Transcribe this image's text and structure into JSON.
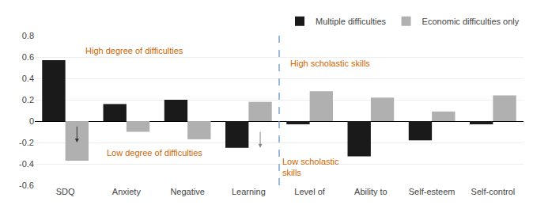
{
  "chart_data": {
    "type": "bar",
    "categories": [
      "SDQ",
      "Anxiety",
      "Negative",
      "Learning",
      "Level of",
      "Ability to",
      "Self-esteem",
      "Self-control"
    ],
    "series": [
      {
        "name": "Multiple difficulties",
        "color": "#1a1a1a",
        "values": [
          0.57,
          0.16,
          0.2,
          -0.25,
          -0.03,
          -0.33,
          -0.18,
          -0.03
        ]
      },
      {
        "name": "Economic difficulties only",
        "color": "#b0b0b0",
        "values": [
          -0.37,
          -0.1,
          -0.17,
          0.18,
          0.28,
          0.22,
          0.09,
          0.24
        ]
      }
    ],
    "annotations": [
      {
        "text": "High degree of difficulties",
        "color": "#cc6600"
      },
      {
        "text": "Low degree of difficulties",
        "color": "#cc6600"
      },
      {
        "text": "High scholastic skills",
        "color": "#cc6600"
      },
      {
        "text": "Low scholastic\nskills",
        "color": "#cc6600"
      }
    ],
    "ylim": [
      -0.6,
      0.8
    ],
    "yticks": [
      -0.6,
      -0.4,
      -0.2,
      0,
      0.2,
      0.4,
      0.6,
      0.8
    ],
    "grid": true,
    "legend": "upper right"
  }
}
